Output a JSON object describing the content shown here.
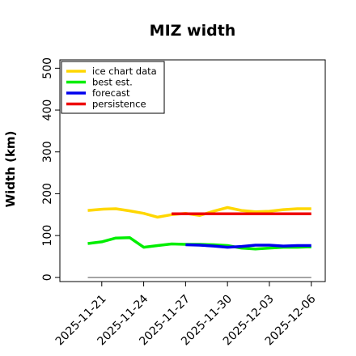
{
  "chart_data": {
    "type": "line",
    "title": "MIZ width",
    "xlabel": "",
    "ylabel": "Width (km)",
    "ylim": [
      -10,
      520
    ],
    "yticks": [
      0,
      100,
      200,
      300,
      400,
      500
    ],
    "xlim": [
      "2025-11-18",
      "2025-12-07"
    ],
    "xticks": [
      "2025-11-21",
      "2025-11-24",
      "2025-11-27",
      "2025-11-30",
      "2025-12-03",
      "2025-12-06"
    ],
    "highlighted_xtick": "2025-11-27",
    "highlight_color": "#228B22",
    "zero_line": 0,
    "grid": false,
    "legend_position": "top-left",
    "series": [
      {
        "name": "ice chart data",
        "color": "#FFD700",
        "x": [
          "2025-11-20",
          "2025-11-21",
          "2025-11-22",
          "2025-11-23",
          "2025-11-24",
          "2025-11-25",
          "2025-11-26",
          "2025-11-27",
          "2025-11-28",
          "2025-11-29",
          "2025-11-30",
          "2025-12-01",
          "2025-12-02",
          "2025-12-03",
          "2025-12-04",
          "2025-12-05",
          "2025-12-06"
        ],
        "values": [
          160,
          163,
          164,
          159,
          153,
          144,
          150,
          153,
          148,
          158,
          167,
          160,
          157,
          158,
          162,
          164,
          164
        ]
      },
      {
        "name": "best est.",
        "color": "#00EE00",
        "x": [
          "2025-11-20",
          "2025-11-21",
          "2025-11-22",
          "2025-11-23",
          "2025-11-24",
          "2025-11-25",
          "2025-11-26",
          "2025-11-27",
          "2025-11-28",
          "2025-11-29",
          "2025-11-30",
          "2025-12-01",
          "2025-12-02",
          "2025-12-03",
          "2025-12-04",
          "2025-12-05",
          "2025-12-06"
        ],
        "values": [
          81,
          85,
          94,
          95,
          72,
          76,
          80,
          79,
          79,
          78,
          76,
          70,
          68,
          70,
          72,
          72,
          73
        ]
      },
      {
        "name": "forecast",
        "color": "#0000EE",
        "x": [
          "2025-11-27",
          "2025-11-28",
          "2025-11-29",
          "2025-11-30",
          "2025-12-01",
          "2025-12-02",
          "2025-12-03",
          "2025-12-04",
          "2025-12-05",
          "2025-12-06"
        ],
        "values": [
          78,
          77,
          75,
          72,
          74,
          77,
          77,
          75,
          76,
          76
        ]
      },
      {
        "name": "persistence",
        "color": "#EE0000",
        "x": [
          "2025-11-26",
          "2025-12-06"
        ],
        "values": [
          152,
          152
        ]
      }
    ]
  }
}
